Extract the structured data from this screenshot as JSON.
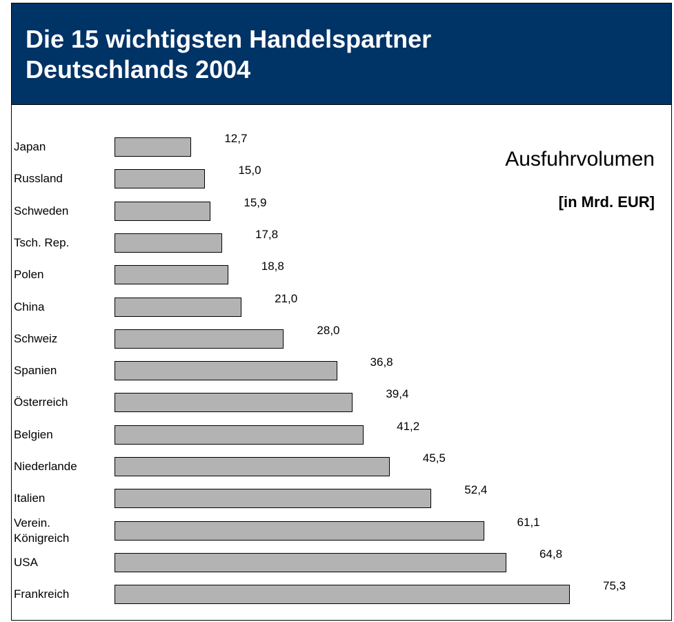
{
  "chart_data": {
    "type": "bar",
    "orientation": "horizontal",
    "title": "Die 15 wichtigsten Handelspartner Deutschlands 2004",
    "subtitle": "Ausfuhrvolumen",
    "unit_label": "[in Mrd. EUR]",
    "color": "#b3b3b3",
    "categories": [
      "Japan",
      "Russland",
      "Schweden",
      "Tsch. Rep.",
      "Polen",
      "China",
      "Schweiz",
      "Spanien",
      "Österreich",
      "Belgien",
      "Niederlande",
      "Italien",
      "Verein.\nKönigreich",
      "USA",
      "Frankreich"
    ],
    "values": [
      12.7,
      15.0,
      15.9,
      17.8,
      18.8,
      21.0,
      28.0,
      36.8,
      39.4,
      41.2,
      45.5,
      52.4,
      61.1,
      64.8,
      75.3
    ],
    "value_labels": [
      "12,7",
      "15,0",
      "15,9",
      "17,8",
      "18,8",
      "21,0",
      "28,0",
      "36,8",
      "39,4",
      "41,2",
      "45,5",
      "52,4",
      "61,1",
      "64,8",
      "75,3"
    ]
  }
}
